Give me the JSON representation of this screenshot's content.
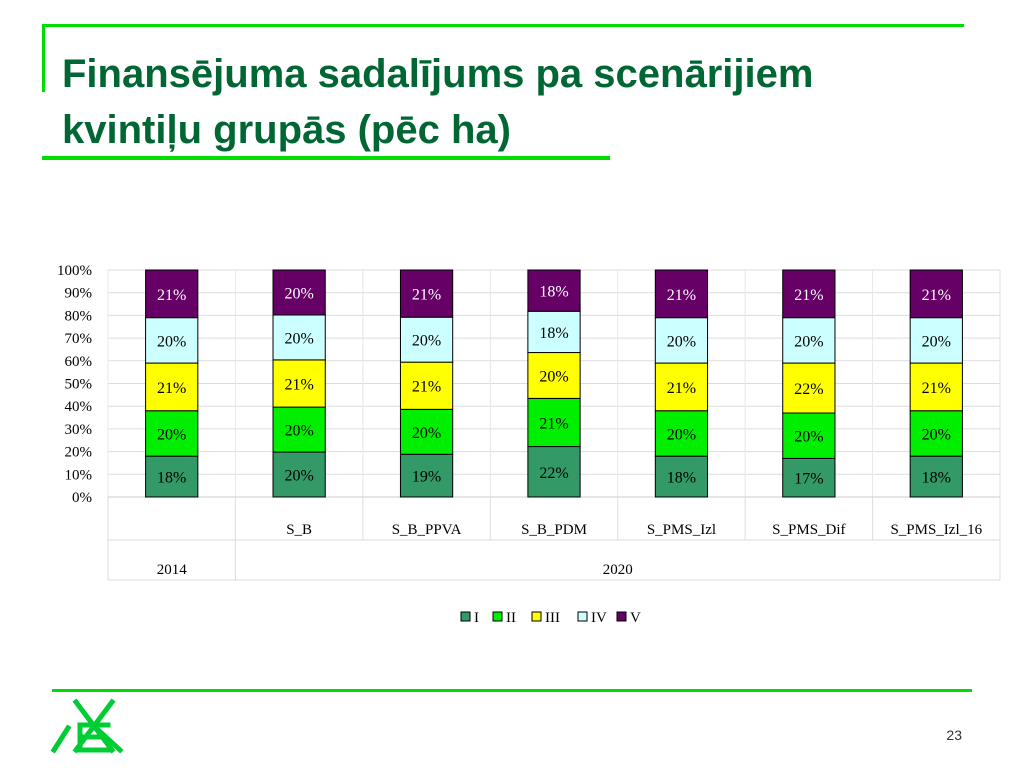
{
  "slide": {
    "title_line1": "Finansējuma sadalījums pa scenārijiem",
    "title_line2": "kvintiļu grupās (pēc ha)",
    "page_number": "23",
    "logo_icon": "letter-e-cross-logo-icon",
    "accent_color": "#00dd00",
    "title_color": "#006633"
  },
  "chart_data": {
    "type": "bar",
    "stacked": true,
    "percent": true,
    "categories": [
      "",
      "S_B",
      "S_B_PPVA",
      "S_B_PDM",
      "S_PMS_Izl",
      "S_PMS_Dif",
      "S_PMS_Izl_16"
    ],
    "groups": [
      {
        "label": "2014",
        "span": 1
      },
      {
        "label": "2020",
        "span": 6
      }
    ],
    "series": [
      {
        "name": "I",
        "color": "#339966",
        "values": [
          18,
          20,
          19,
          22,
          18,
          17,
          18
        ],
        "labels": [
          "18%",
          "20%",
          "19%",
          "22%",
          "18%",
          "17%",
          "18%"
        ]
      },
      {
        "name": "II",
        "color": "#00ee00",
        "values": [
          20,
          20,
          20,
          21,
          20,
          20,
          20
        ],
        "labels": [
          "20%",
          "20%",
          "20%",
          "21%",
          "20%",
          "20%",
          "20%"
        ]
      },
      {
        "name": "III",
        "color": "#ffff00",
        "values": [
          21,
          21,
          21,
          20,
          21,
          22,
          21
        ],
        "labels": [
          "21%",
          "21%",
          "21%",
          "20%",
          "21%",
          "22%",
          "21%"
        ]
      },
      {
        "name": "IV",
        "color": "#ccffff",
        "values": [
          20,
          20,
          20,
          18,
          20,
          20,
          20
        ],
        "labels": [
          "20%",
          "20%",
          "20%",
          "18%",
          "20%",
          "20%",
          "20%"
        ]
      },
      {
        "name": "V",
        "color": "#660066",
        "values": [
          21,
          20,
          21,
          18,
          21,
          21,
          21
        ],
        "labels": [
          "21%",
          "20%",
          "21%",
          "18%",
          "21%",
          "21%",
          "21%"
        ]
      }
    ],
    "yticks": [
      "0%",
      "10%",
      "20%",
      "30%",
      "40%",
      "50%",
      "60%",
      "70%",
      "80%",
      "90%",
      "100%"
    ],
    "ylim": [
      0,
      100
    ],
    "grid": true,
    "legend_position": "bottom",
    "title": "",
    "xlabel": "",
    "ylabel": ""
  }
}
